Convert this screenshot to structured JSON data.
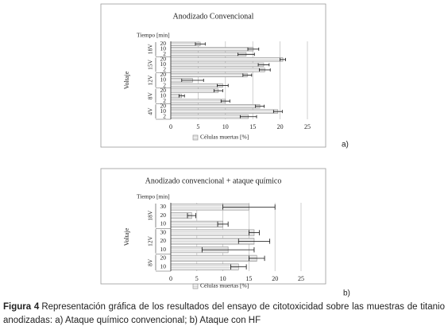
{
  "chart_data": [
    {
      "type": "bar",
      "title": "Anodizado Convencional",
      "row_header": "Tiempo [min]",
      "ylabel": "Voltaje",
      "legend": "Células muertas [%]",
      "panel_label": "a)",
      "color": "#e4e4e4",
      "xlim": [
        0,
        25
      ],
      "xticks": [
        0,
        5,
        10,
        15,
        20,
        25
      ],
      "grid": true,
      "groups": [
        {
          "name": "18V",
          "categories": [
            "20",
            "10",
            "2"
          ],
          "values": [
            5.4,
            15.1,
            13.8
          ],
          "errors": [
            0.9,
            1,
            1.5
          ]
        },
        {
          "name": "15V",
          "categories": [
            "20",
            "10",
            "2"
          ],
          "values": [
            20.5,
            17,
            17.2
          ],
          "errors": [
            0.5,
            1,
            1
          ]
        },
        {
          "name": "12V",
          "categories": [
            "20",
            "10",
            "2"
          ],
          "values": [
            14,
            4,
            9.5
          ],
          "errors": [
            0.8,
            2,
            1
          ]
        },
        {
          "name": "8V",
          "categories": [
            "20",
            "10",
            "2"
          ],
          "values": [
            8.7,
            2,
            10
          ],
          "errors": [
            0.8,
            0.5,
            0.8
          ]
        },
        {
          "name": "4V",
          "categories": [
            "20",
            "10",
            "2"
          ],
          "values": [
            16.3,
            19.6,
            14.2
          ],
          "errors": [
            0.8,
            0.8,
            1.5
          ]
        }
      ]
    },
    {
      "type": "bar",
      "title": "Anodizado convencional + ataque químico",
      "row_header": "Tiempo [min]",
      "ylabel": "Voltaje",
      "legend": "Células muertas [%]",
      "panel_label": "b)",
      "color": "#e4e4e4",
      "xlim": [
        0,
        25
      ],
      "xticks": [
        0,
        5,
        10,
        15,
        20,
        25
      ],
      "grid": true,
      "groups": [
        {
          "name": "18V",
          "categories": [
            "30",
            "20",
            "10"
          ],
          "values": [
            15,
            4,
            10
          ],
          "errors": [
            5,
            0.8,
            1
          ]
        },
        {
          "name": "12V",
          "categories": [
            "30",
            "20",
            "10"
          ],
          "values": [
            16,
            16,
            11
          ],
          "errors": [
            1,
            3,
            5
          ]
        },
        {
          "name": "8V",
          "categories": [
            "20",
            "10"
          ],
          "values": [
            16.5,
            13
          ],
          "errors": [
            1.5,
            1.5
          ]
        }
      ]
    }
  ],
  "caption": {
    "label": "Figura 4",
    "text": "Representación gráfica de los resultados del ensayo de citotoxicidad sobre las muestras de titanio anodizadas: a) Ataque químico convencional; b) Ataque con HF"
  }
}
